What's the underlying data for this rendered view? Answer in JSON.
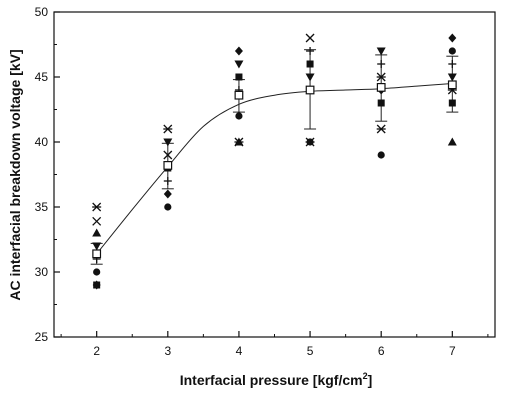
{
  "chart_data": {
    "type": "scatter",
    "title": "",
    "xlabel": "Interfacial pressure [kgf/cm",
    "xlabel_sup": "2",
    "xlabel_end": "]",
    "ylabel": "AC interfacial breakdown voltage [kV]",
    "xlim": [
      1.4,
      7.6
    ],
    "ylim": [
      25,
      50
    ],
    "x_ticks": [
      "2",
      "3",
      "4",
      "5",
      "6",
      "7"
    ],
    "y_ticks": [
      "25",
      "30",
      "35",
      "40",
      "45",
      "50"
    ],
    "grid": false,
    "legend": "none",
    "mean_series": {
      "marker": "open-square",
      "x": [
        2,
        3,
        4,
        5,
        6,
        7
      ],
      "y": [
        31.4,
        38.2,
        43.6,
        44.0,
        44.2,
        44.4
      ],
      "err_low": [
        30.6,
        36.4,
        42.3,
        41.0,
        41.6,
        42.3
      ],
      "err_high": [
        32.2,
        39.9,
        44.8,
        47.1,
        46.7,
        46.6
      ]
    },
    "fit_curve": {
      "x": [
        2.0,
        2.5,
        3.0,
        3.5,
        4.0,
        4.5,
        5.0,
        5.5,
        6.0,
        6.5,
        7.0
      ],
      "y": [
        31.4,
        34.8,
        38.1,
        41.2,
        42.9,
        43.6,
        43.9,
        44.0,
        44.1,
        44.3,
        44.5
      ]
    },
    "points": [
      {
        "x": 2,
        "y": 35.0,
        "marker": "asterisk"
      },
      {
        "x": 2,
        "y": 33.9,
        "marker": "cross"
      },
      {
        "x": 2,
        "y": 33.0,
        "marker": "filled-triangle-up"
      },
      {
        "x": 2,
        "y": 32.0,
        "marker": "filled-triangle-down"
      },
      {
        "x": 2,
        "y": 31.0,
        "marker": "plus"
      },
      {
        "x": 2,
        "y": 30.0,
        "marker": "filled-circle"
      },
      {
        "x": 2,
        "y": 29.0,
        "marker": "filled-square"
      },
      {
        "x": 2,
        "y": 29.0,
        "marker": "filled-diamond"
      },
      {
        "x": 3,
        "y": 41.0,
        "marker": "asterisk"
      },
      {
        "x": 3,
        "y": 40.0,
        "marker": "filled-triangle-down"
      },
      {
        "x": 3,
        "y": 39.0,
        "marker": "cross"
      },
      {
        "x": 3,
        "y": 38.0,
        "marker": "filled-square"
      },
      {
        "x": 3,
        "y": 37.0,
        "marker": "plus"
      },
      {
        "x": 3,
        "y": 36.0,
        "marker": "filled-diamond"
      },
      {
        "x": 3,
        "y": 35.0,
        "marker": "filled-circle"
      },
      {
        "x": 4,
        "y": 47.0,
        "marker": "filled-diamond"
      },
      {
        "x": 4,
        "y": 46.0,
        "marker": "filled-triangle-down"
      },
      {
        "x": 4,
        "y": 45.0,
        "marker": "filled-square"
      },
      {
        "x": 4,
        "y": 44.0,
        "marker": "plus"
      },
      {
        "x": 4,
        "y": 42.0,
        "marker": "filled-circle"
      },
      {
        "x": 4,
        "y": 40.0,
        "marker": "filled-triangle-up"
      },
      {
        "x": 4,
        "y": 40.0,
        "marker": "asterisk"
      },
      {
        "x": 5,
        "y": 48.0,
        "marker": "cross"
      },
      {
        "x": 5,
        "y": 47.0,
        "marker": "plus"
      },
      {
        "x": 5,
        "y": 46.0,
        "marker": "filled-square"
      },
      {
        "x": 5,
        "y": 45.0,
        "marker": "filled-triangle-down"
      },
      {
        "x": 5,
        "y": 40.0,
        "marker": "filled-circle"
      },
      {
        "x": 5,
        "y": 40.0,
        "marker": "asterisk"
      },
      {
        "x": 6,
        "y": 47.0,
        "marker": "filled-triangle-down"
      },
      {
        "x": 6,
        "y": 46.0,
        "marker": "plus"
      },
      {
        "x": 6,
        "y": 45.0,
        "marker": "asterisk"
      },
      {
        "x": 6,
        "y": 44.0,
        "marker": "filled-diamond"
      },
      {
        "x": 6,
        "y": 43.0,
        "marker": "filled-square"
      },
      {
        "x": 6,
        "y": 41.0,
        "marker": "asterisk"
      },
      {
        "x": 6,
        "y": 39.0,
        "marker": "filled-circle"
      },
      {
        "x": 7,
        "y": 48.0,
        "marker": "filled-diamond"
      },
      {
        "x": 7,
        "y": 47.0,
        "marker": "filled-circle"
      },
      {
        "x": 7,
        "y": 46.0,
        "marker": "plus"
      },
      {
        "x": 7,
        "y": 45.0,
        "marker": "filled-triangle-down"
      },
      {
        "x": 7,
        "y": 44.0,
        "marker": "asterisk"
      },
      {
        "x": 7,
        "y": 43.0,
        "marker": "filled-square"
      },
      {
        "x": 7,
        "y": 40.0,
        "marker": "filled-triangle-up"
      }
    ]
  }
}
